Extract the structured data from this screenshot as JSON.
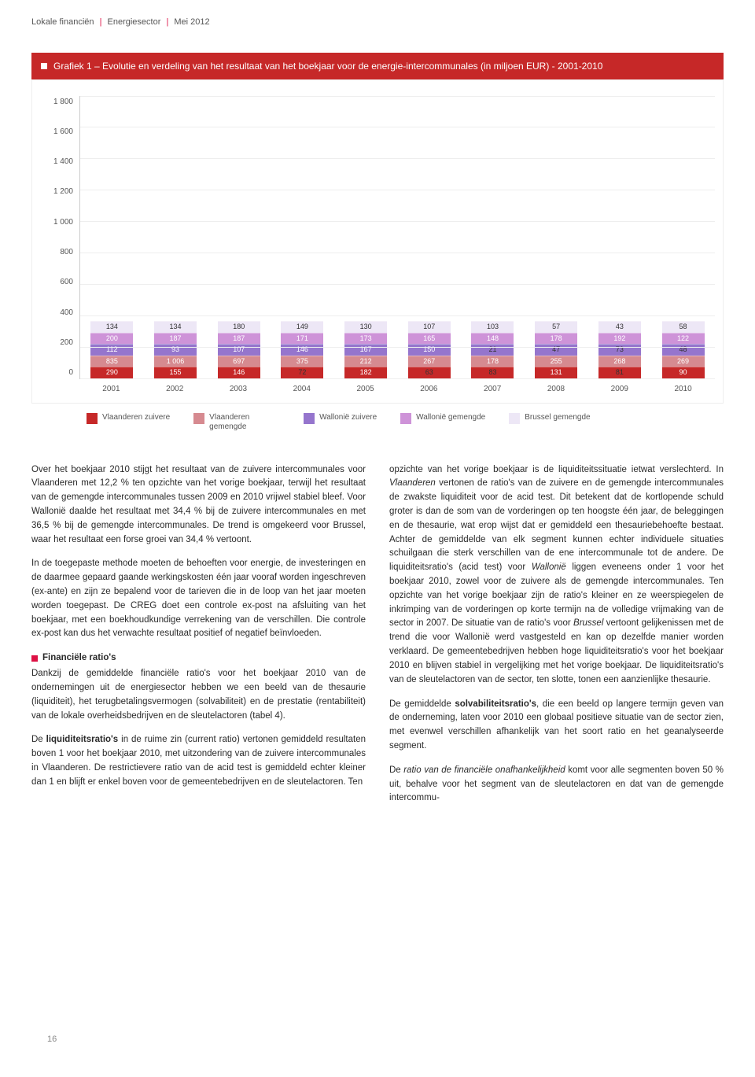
{
  "header": {
    "p1": "Lokale financiën",
    "p2": "Energiesector",
    "p3": "Mei 2012"
  },
  "chart": {
    "title": "Grafiek 1 – Evolutie en verdeling van het resultaat van het boekjaar voor de energie-intercommunales (in miljoen EUR) - 2001-2010",
    "type": "stacked-bar",
    "ymax": 1800,
    "yticks": [
      "1 800",
      "1 600",
      "1 400",
      "1 200",
      "1 000",
      "800",
      "600",
      "400",
      "200",
      "0"
    ],
    "years": [
      "2001",
      "2002",
      "2003",
      "2004",
      "2005",
      "2006",
      "2007",
      "2008",
      "2009",
      "2010"
    ],
    "colors": {
      "vlaanderen_zuivere": "#c62828",
      "vlaanderen_gemengde": "#d68a90",
      "wallonie_zuivere": "#9575cd",
      "wallonie_gemengde": "#ce93d8",
      "brussel_gemengde": "#ede7f6"
    },
    "series_order": [
      "vlaanderen_zuivere",
      "vlaanderen_gemengde",
      "wallonie_zuivere",
      "wallonie_gemengde",
      "brussel_gemengde"
    ],
    "data": [
      {
        "vlaanderen_zuivere": 290,
        "vlaanderen_gemengde": 835,
        "wallonie_zuivere": 112,
        "wallonie_gemengde": 200,
        "brussel_gemengde": 134
      },
      {
        "vlaanderen_zuivere": 155,
        "vlaanderen_gemengde": 1006,
        "wallonie_zuivere": 93,
        "wallonie_gemengde": 187,
        "brussel_gemengde": 134
      },
      {
        "vlaanderen_zuivere": 146,
        "vlaanderen_gemengde": 697,
        "wallonie_zuivere": 107,
        "wallonie_gemengde": 187,
        "brussel_gemengde": 180
      },
      {
        "vlaanderen_zuivere": 72,
        "vlaanderen_gemengde": 375,
        "wallonie_zuivere": 146,
        "wallonie_gemengde": 171,
        "brussel_gemengde": 149
      },
      {
        "vlaanderen_zuivere": 182,
        "vlaanderen_gemengde": 212,
        "wallonie_zuivere": 167,
        "wallonie_gemengde": 173,
        "brussel_gemengde": 130
      },
      {
        "vlaanderen_zuivere": 63,
        "vlaanderen_gemengde": 267,
        "wallonie_zuivere": 150,
        "wallonie_gemengde": 165,
        "brussel_gemengde": 107
      },
      {
        "vlaanderen_zuivere": 83,
        "vlaanderen_gemengde": 178,
        "wallonie_zuivere": 21,
        "wallonie_gemengde": 148,
        "brussel_gemengde": 103
      },
      {
        "vlaanderen_zuivere": 131,
        "vlaanderen_gemengde": 255,
        "wallonie_zuivere": 47,
        "wallonie_gemengde": 178,
        "brussel_gemengde": 57
      },
      {
        "vlaanderen_zuivere": 81,
        "vlaanderen_gemengde": 268,
        "wallonie_zuivere": 73,
        "wallonie_gemengde": 192,
        "brussel_gemengde": 43
      },
      {
        "vlaanderen_zuivere": 90,
        "vlaanderen_gemengde": 269,
        "wallonie_zuivere": 48,
        "wallonie_gemengde": 122,
        "brussel_gemengde": 58
      }
    ],
    "labels": [
      {
        "vlaanderen_zuivere": "290",
        "vlaanderen_gemengde": "835",
        "wallonie_zuivere": "112",
        "wallonie_gemengde": "200",
        "brussel_gemengde": "134"
      },
      {
        "vlaanderen_zuivere": "155",
        "vlaanderen_gemengde": "1 006",
        "wallonie_zuivere": "93",
        "wallonie_gemengde": "187",
        "brussel_gemengde": "134"
      },
      {
        "vlaanderen_zuivere": "146",
        "vlaanderen_gemengde": "697",
        "wallonie_zuivere": "107",
        "wallonie_gemengde": "187",
        "brussel_gemengde": "180"
      },
      {
        "vlaanderen_zuivere": "72",
        "vlaanderen_gemengde": "375",
        "wallonie_zuivere": "146",
        "wallonie_gemengde": "171",
        "brussel_gemengde": "149"
      },
      {
        "vlaanderen_zuivere": "182",
        "vlaanderen_gemengde": "212",
        "wallonie_zuivere": "167",
        "wallonie_gemengde": "173",
        "brussel_gemengde": "130"
      },
      {
        "vlaanderen_zuivere": "63",
        "vlaanderen_gemengde": "267",
        "wallonie_zuivere": "150",
        "wallonie_gemengde": "165",
        "brussel_gemengde": "107"
      },
      {
        "vlaanderen_zuivere": "83",
        "vlaanderen_gemengde": "178",
        "wallonie_zuivere": "21",
        "wallonie_gemengde": "148",
        "brussel_gemengde": "103"
      },
      {
        "vlaanderen_zuivere": "131",
        "vlaanderen_gemengde": "255",
        "wallonie_zuivere": "47",
        "wallonie_gemengde": "178",
        "brussel_gemengde": "57"
      },
      {
        "vlaanderen_zuivere": "81",
        "vlaanderen_gemengde": "268",
        "wallonie_zuivere": "73",
        "wallonie_gemengde": "192",
        "brussel_gemengde": "43"
      },
      {
        "vlaanderen_zuivere": "90",
        "vlaanderen_gemengde": "269",
        "wallonie_zuivere": "48",
        "wallonie_gemengde": "122",
        "brussel_gemengde": "58"
      }
    ],
    "legend": [
      {
        "key": "vlaanderen_zuivere",
        "label": "Vlaanderen zuivere"
      },
      {
        "key": "vlaanderen_gemengde",
        "label": "Vlaanderen gemengde"
      },
      {
        "key": "wallonie_zuivere",
        "label": "Wallonië zuivere"
      },
      {
        "key": "wallonie_gemengde",
        "label": "Wallonië gemengde"
      },
      {
        "key": "brussel_gemengde",
        "label": "Brussel gemengde"
      }
    ]
  },
  "text": {
    "col1_p1": "Over het boekjaar 2010 stijgt het resultaat van de zuivere intercommunales voor Vlaanderen met 12,2 % ten opzichte van het vorige boekjaar, terwijl het resultaat van de gemengde intercommunales tussen 2009 en 2010 vrijwel stabiel bleef. Voor Wallonië daalde het resultaat met 34,4 % bij de zuivere intercommunales en met 36,5 % bij de gemengde intercommunales. De trend is omgekeerd voor Brussel, waar het resultaat een forse groei van 34,4 % vertoont.",
    "col1_p2": "In de toegepaste methode moeten de behoeften voor energie, de investeringen en de daarmee gepaard gaande werkingskosten één jaar vooraf worden ingeschreven (ex-ante) en zijn ze bepalend voor de tarieven die in de loop van het jaar moeten worden toegepast. De CREG doet een controle ex-post na afsluiting van het boekjaar, met een boekhoudkundige verrekening van de verschillen. Die controle ex-post kan dus het verwachte resultaat positief of negatief beïnvloeden.",
    "sec1_head": "Financiële ratio's",
    "col1_p3": "Dankzij de gemiddelde financiële ratio's voor het boekjaar 2010 van de ondernemingen uit de energiesector hebben we een beeld van de thesaurie (liquiditeit), het terugbetalingsvermogen (solvabiliteit) en de prestatie (rentabiliteit) van de lokale overheidsbedrijven en de sleutelactoren (tabel 4).",
    "col1_p4a": "De ",
    "col1_p4b": "liquiditeitsratio's",
    "col1_p4c": " in de ruime zin (current ratio) vertonen gemiddeld resultaten boven 1 voor het boekjaar 2010, met uitzondering van de zuivere intercommunales in Vlaanderen. De restrictievere ratio van de acid test is gemiddeld echter kleiner dan 1 en blijft er enkel boven voor de gemeentebedrijven en de sleutelactoren. Ten",
    "col2_p1a": "opzichte van het vorige boekjaar is de liquiditeitssituatie ietwat verslechterd. In ",
    "col2_p1b": "Vlaanderen",
    "col2_p1c": " vertonen de ratio's van de zuivere en de gemengde intercommunales de zwakste liquiditeit voor de acid test. Dit betekent dat de kortlopende schuld groter is dan de som van de vorderingen op ten hoogste één jaar, de beleggingen en de thesaurie, wat erop wijst dat er gemiddeld een thesauriebehoefte bestaat. Achter de gemiddelde van elk segment kunnen echter individuele situaties schuilgaan die sterk verschillen van de ene intercommunale tot de andere. De liquiditeitsratio's (acid test) voor ",
    "col2_p1d": "Wallonië",
    "col2_p1e": " liggen eveneens onder 1 voor het boekjaar 2010, zowel voor de zuivere als de gemengde intercommunales. Ten opzichte van het vorige boekjaar zijn de ratio's kleiner en ze weerspiegelen de inkrimping van de vorderingen op korte termijn na de volledige vrijmaking van de sector in 2007. De situatie van de ratio's voor ",
    "col2_p1f": "Brussel",
    "col2_p1g": " vertoont gelijkenissen met de trend die voor Wallonië werd vastgesteld en kan op dezelfde manier worden verklaard. De gemeentebedrijven hebben hoge liquiditeitsratio's voor het boekjaar 2010 en blijven stabiel in vergelijking met het vorige boekjaar. De liquiditeitsratio's van de sleutelactoren van de sector, ten slotte, tonen een aanzienlijke thesaurie.",
    "col2_p2a": "De gemiddelde ",
    "col2_p2b": "solvabiliteitsratio's",
    "col2_p2c": ", die een beeld op langere termijn geven van de onderneming, laten voor 2010 een globaal positieve situatie van de sector zien, met evenwel verschillen afhankelijk van het soort ratio en het geanalyseerde segment.",
    "col2_p3a": "De ",
    "col2_p3b": "ratio van de financiële onafhankelijkheid",
    "col2_p3c": " komt voor alle segmenten boven 50 % uit, behalve voor het segment van de sleutelactoren en dat van de gemengde intercommu-"
  },
  "page_number": "16"
}
